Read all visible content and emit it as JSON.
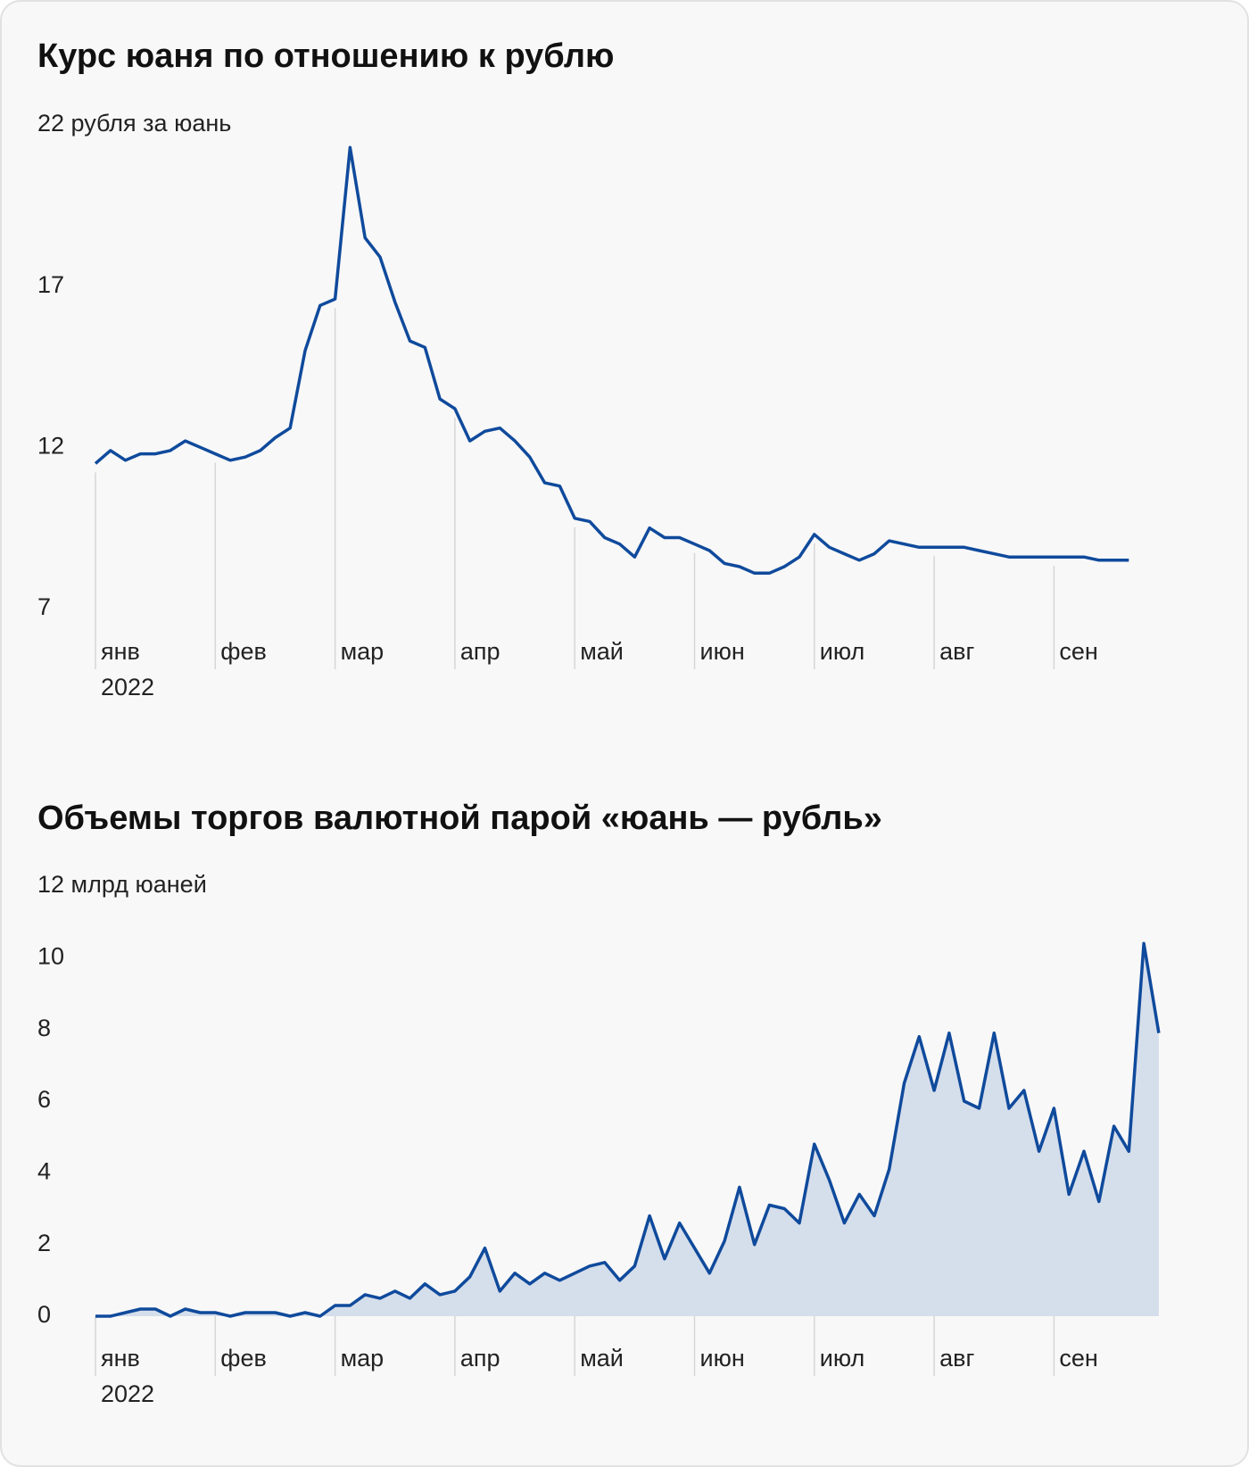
{
  "chart_data": [
    {
      "type": "line",
      "title": "Курс юаня по отношению к рублю",
      "year_label": "2022",
      "color": "#0f4a9c",
      "categories": [
        "янв",
        null,
        null,
        null,
        null,
        null,
        null,
        null,
        "фев",
        null,
        null,
        null,
        null,
        null,
        null,
        null,
        "мар",
        null,
        null,
        null,
        null,
        null,
        null,
        null,
        "апр",
        null,
        null,
        null,
        null,
        null,
        null,
        null,
        "май",
        null,
        null,
        null,
        null,
        null,
        null,
        null,
        "июн",
        null,
        null,
        null,
        null,
        null,
        null,
        null,
        "июл",
        null,
        null,
        null,
        null,
        null,
        null,
        null,
        "авг",
        null,
        null,
        null,
        null,
        null,
        null,
        null,
        "сен",
        null,
        null,
        null,
        null,
        null
      ],
      "values": [
        11.5,
        11.9,
        11.6,
        11.8,
        11.8,
        11.9,
        12.2,
        12.0,
        11.8,
        11.6,
        11.7,
        11.9,
        12.3,
        12.6,
        15.0,
        16.4,
        16.6,
        21.3,
        18.5,
        17.9,
        16.5,
        15.3,
        15.1,
        13.5,
        13.2,
        12.2,
        12.5,
        12.6,
        12.2,
        11.7,
        10.9,
        10.8,
        9.8,
        9.7,
        9.2,
        9.0,
        8.6,
        9.5,
        9.2,
        9.2,
        9.0,
        8.8,
        8.4,
        8.3,
        8.1,
        8.1,
        8.3,
        8.6,
        9.3,
        8.9,
        8.7,
        8.5,
        8.7,
        9.1,
        9.0,
        8.9,
        8.9,
        8.9,
        8.9,
        8.8,
        8.7,
        8.6,
        8.6,
        8.6,
        8.6,
        8.6,
        8.6,
        8.5,
        8.5,
        8.5
      ],
      "ylim": [
        7,
        22
      ],
      "yticks": [
        7,
        12,
        17,
        {
          "value": 22,
          "label": "22 рубля за юань"
        }
      ]
    },
    {
      "type": "area",
      "title": "Объемы торгов валютной парой «юань — рубль»",
      "year_label": "2022",
      "color": "#0f4a9c",
      "fill": "#d5deeb",
      "categories": [
        "янв",
        null,
        null,
        null,
        null,
        null,
        null,
        null,
        "фев",
        null,
        null,
        null,
        null,
        null,
        null,
        null,
        "мар",
        null,
        null,
        null,
        null,
        null,
        null,
        null,
        "апр",
        null,
        null,
        null,
        null,
        null,
        null,
        null,
        "май",
        null,
        null,
        null,
        null,
        null,
        null,
        null,
        "июн",
        null,
        null,
        null,
        null,
        null,
        null,
        null,
        "июл",
        null,
        null,
        null,
        null,
        null,
        null,
        null,
        "авг",
        null,
        null,
        null,
        null,
        null,
        null,
        null,
        "сен",
        null,
        null,
        null,
        null,
        null,
        null,
        null
      ],
      "values": [
        0,
        0,
        0.1,
        0.2,
        0.2,
        0,
        0.2,
        0.1,
        0.1,
        0,
        0.1,
        0.1,
        0.1,
        0,
        0.1,
        0,
        0.3,
        0.3,
        0.6,
        0.5,
        0.7,
        0.5,
        0.9,
        0.6,
        0.7,
        1.1,
        1.9,
        0.7,
        1.2,
        0.9,
        1.2,
        1.0,
        1.2,
        1.4,
        1.5,
        1.0,
        1.4,
        2.8,
        1.6,
        2.6,
        1.9,
        1.2,
        2.1,
        3.6,
        2.0,
        3.1,
        3.0,
        2.6,
        4.8,
        3.8,
        2.6,
        3.4,
        2.8,
        4.1,
        6.5,
        7.8,
        6.3,
        7.9,
        6.0,
        5.8,
        7.9,
        5.8,
        6.3,
        4.6,
        5.8,
        3.4,
        4.6,
        3.2,
        5.3,
        4.6,
        10.4,
        7.9
      ],
      "ylim": [
        0,
        12
      ],
      "yticks": [
        0,
        2,
        4,
        6,
        8,
        10,
        {
          "value": 12,
          "label": "12 млрд юаней"
        }
      ]
    }
  ]
}
